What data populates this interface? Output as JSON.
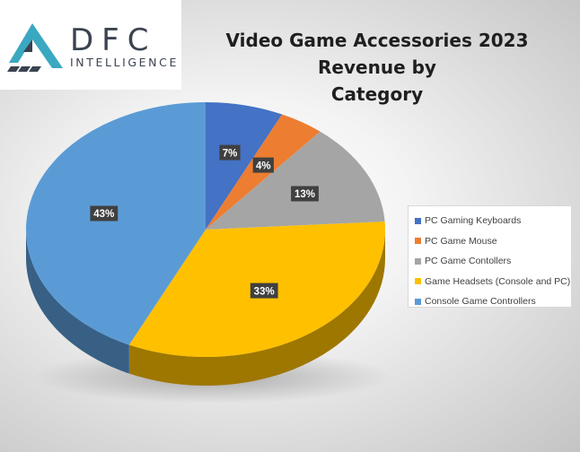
{
  "logo": {
    "name": "DFC",
    "subtitle": "INTELLIGENCE"
  },
  "chart_data": {
    "type": "pie",
    "title": "Video Game Accessories 2023 Revenue by Category",
    "title_lines": [
      "Video Game Accessories 2023 Revenue by",
      "Category"
    ],
    "legend_position": "right",
    "slices": [
      {
        "name": "PC Gaming Keyboards",
        "value": 7,
        "label": "7%",
        "color": "#4472c4"
      },
      {
        "name": "PC Game Mouse",
        "value": 4,
        "label": "4%",
        "color": "#ed7d31"
      },
      {
        "name": "PC Game Contollers",
        "value": 13,
        "label": "13%",
        "color": "#a5a5a5"
      },
      {
        "name": "Game Headsets (Console and PC)",
        "value": 33,
        "label": "33%",
        "color": "#ffc000"
      },
      {
        "name": "Console Game Controllers",
        "value": 43,
        "label": "43%",
        "color": "#5b9bd5"
      }
    ]
  }
}
